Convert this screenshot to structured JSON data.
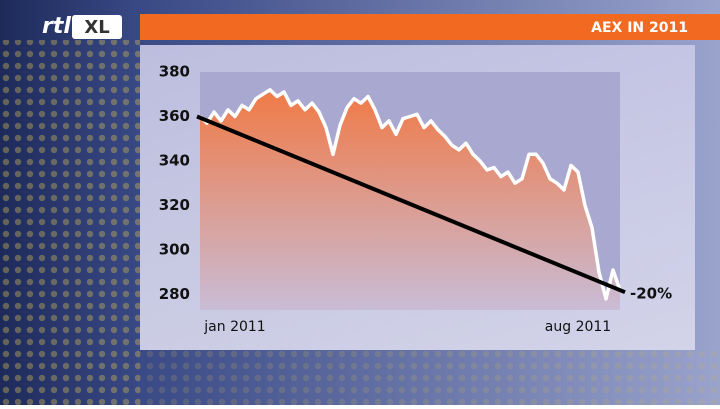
{
  "logo": {
    "brand": "rtl",
    "suffix": "XL"
  },
  "chart_data": {
    "type": "area-line",
    "title": "AEX IN 2011",
    "categories": [
      null,
      null,
      null,
      null,
      null,
      "jan 2011",
      null,
      null,
      null,
      null,
      null,
      null,
      null,
      null,
      null,
      null,
      null,
      null,
      null,
      null,
      null,
      null,
      null,
      null,
      null,
      null,
      null,
      null,
      null,
      null,
      null,
      null,
      null,
      null,
      null,
      null,
      null,
      null,
      null,
      null,
      null,
      null,
      null,
      null,
      null,
      null,
      null,
      null,
      null,
      null,
      null,
      null,
      null,
      null,
      "aug 2011",
      null,
      null,
      null,
      null,
      null,
      null
    ],
    "values": [
      360,
      357,
      362,
      358,
      363,
      360,
      365,
      363,
      368,
      370,
      372,
      369,
      371,
      365,
      367,
      363,
      366,
      362,
      355,
      343,
      356,
      364,
      368,
      366,
      369,
      363,
      355,
      358,
      352,
      359,
      360,
      361,
      355,
      358,
      354,
      351,
      347,
      345,
      348,
      343,
      340,
      336,
      337,
      333,
      335,
      330,
      332,
      343,
      343,
      339,
      332,
      330,
      327,
      338,
      335,
      320,
      310,
      290,
      278,
      291,
      282
    ],
    "color": "#ffffff",
    "ylim": [
      273,
      380
    ],
    "yticks": [
      280,
      300,
      320,
      340,
      360,
      380
    ],
    "trend_line": {
      "start": 360,
      "end": 281,
      "color": "#000000"
    },
    "annotation": "-20%"
  }
}
